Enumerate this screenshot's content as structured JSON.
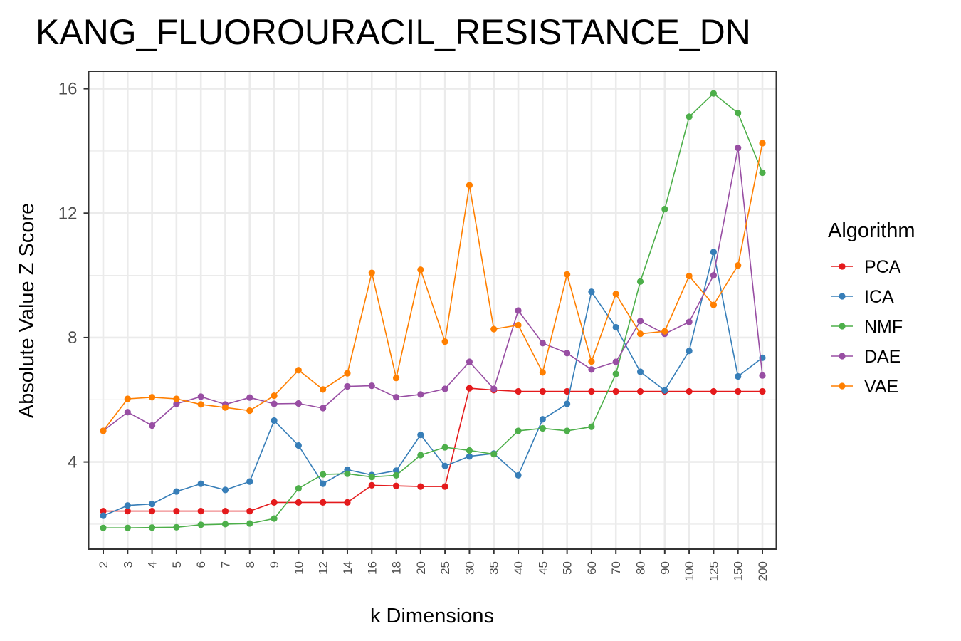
{
  "chart_data": {
    "type": "line",
    "title": "KANG_FLUOROURACIL_RESISTANCE_DN",
    "xlabel": "k Dimensions",
    "ylabel": "Absolute Value Z Score",
    "categories": [
      "2",
      "3",
      "4",
      "5",
      "6",
      "7",
      "8",
      "9",
      "10",
      "12",
      "14",
      "16",
      "18",
      "20",
      "25",
      "30",
      "35",
      "40",
      "45",
      "50",
      "60",
      "70",
      "80",
      "90",
      "100",
      "125",
      "150",
      "200"
    ],
    "ylim": [
      1.0,
      16.6
    ],
    "yticks": [
      4,
      8,
      12,
      16
    ],
    "ytick_labels": [
      "4",
      "8",
      "12",
      "16"
    ],
    "grid": true,
    "legend_title": "Algorithm",
    "legend_position": "right",
    "series": [
      {
        "name": "PCA",
        "color": "#e41a1c",
        "values": [
          2.42,
          2.42,
          2.42,
          2.42,
          2.42,
          2.42,
          2.42,
          2.7,
          2.7,
          2.7,
          2.7,
          3.25,
          3.23,
          3.21,
          3.21,
          6.37,
          6.31,
          6.27,
          6.27,
          6.27,
          6.27,
          6.27,
          6.27,
          6.27,
          6.27,
          6.27,
          6.27,
          6.27
        ]
      },
      {
        "name": "ICA",
        "color": "#377eb8",
        "values": [
          2.27,
          2.6,
          2.65,
          3.05,
          3.3,
          3.1,
          3.37,
          5.33,
          4.53,
          3.3,
          3.75,
          3.58,
          3.72,
          4.87,
          3.87,
          4.18,
          4.27,
          3.57,
          5.37,
          5.87,
          9.47,
          8.33,
          6.9,
          6.3,
          7.57,
          10.75,
          6.75,
          7.35
        ]
      },
      {
        "name": "NMF",
        "color": "#4daf4a",
        "values": [
          1.88,
          1.88,
          1.89,
          1.9,
          1.98,
          2.0,
          2.02,
          2.18,
          3.15,
          3.6,
          3.62,
          3.52,
          3.57,
          4.22,
          4.47,
          4.37,
          4.25,
          5.0,
          5.08,
          5.0,
          5.13,
          6.83,
          9.8,
          12.13,
          15.1,
          15.85,
          15.22,
          13.3
        ]
      },
      {
        "name": "DAE",
        "color": "#984ea3",
        "values": [
          5.0,
          5.6,
          5.17,
          5.87,
          6.1,
          5.85,
          6.07,
          5.87,
          5.88,
          5.73,
          6.43,
          6.45,
          6.08,
          6.17,
          6.35,
          7.22,
          6.35,
          8.87,
          7.82,
          7.5,
          6.97,
          7.22,
          8.53,
          8.12,
          8.5,
          10.0,
          14.1,
          6.78
        ]
      },
      {
        "name": "VAE",
        "color": "#ff7f00",
        "values": [
          5.0,
          6.03,
          6.08,
          6.03,
          5.85,
          5.75,
          5.65,
          6.13,
          6.95,
          6.33,
          6.85,
          10.08,
          6.7,
          10.18,
          7.87,
          12.9,
          8.27,
          8.4,
          6.88,
          10.03,
          7.23,
          9.4,
          8.12,
          8.2,
          9.98,
          9.05,
          10.32,
          14.25
        ]
      }
    ]
  }
}
